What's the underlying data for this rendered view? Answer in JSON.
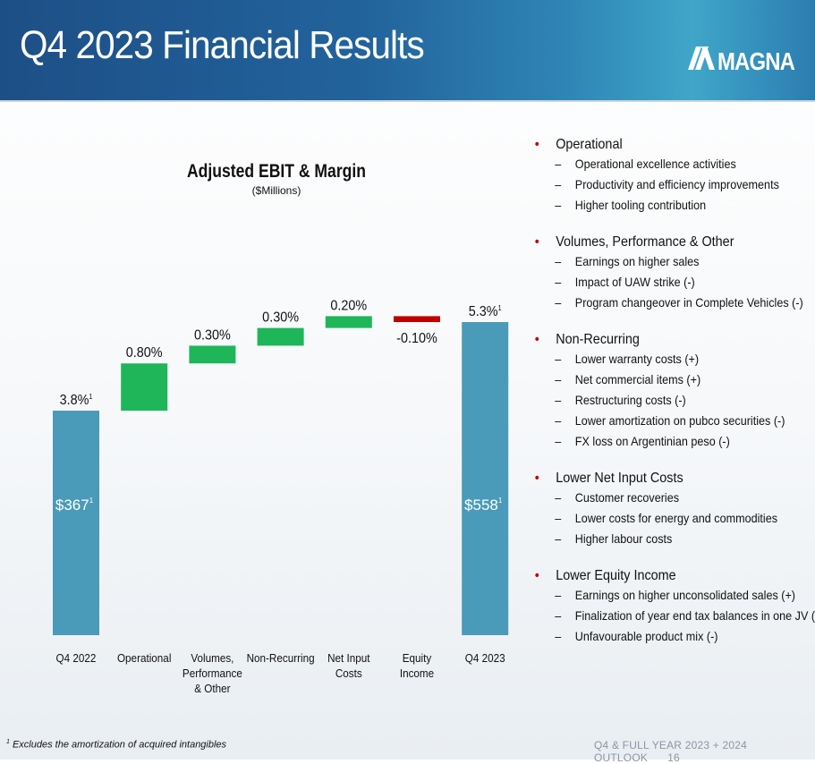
{
  "header": {
    "title": "Q4 2023 Financial Results",
    "logo_text": "MAGNA"
  },
  "colors": {
    "header_dark": "#1d4f86",
    "header_light": "#3fa6c9",
    "endpoint_bar": "#4a9ab9",
    "increase_bar": "#1fb65a",
    "decrease_bar": "#c00000",
    "bullet": "#c00000"
  },
  "chart_data": {
    "type": "bar",
    "subtype": "waterfall",
    "title": "Adjusted EBIT & Margin",
    "subtitle": "($Millions)",
    "categories": [
      "Q4 2022",
      "Operational",
      "Volumes,\nPerformance\n& Other",
      "Non-Recurring",
      "Net Input\nCosts",
      "Equity\nIncome",
      "Q4 2023"
    ],
    "steps": [
      {
        "kind": "total",
        "margin": 3.8,
        "label": "3.8%",
        "footnote": "1",
        "value_label": "$367",
        "value_footnote": "1"
      },
      {
        "kind": "delta",
        "change": 0.8,
        "label": "0.80%"
      },
      {
        "kind": "delta",
        "change": 0.3,
        "label": "0.30%"
      },
      {
        "kind": "delta",
        "change": 0.3,
        "label": "0.30%"
      },
      {
        "kind": "delta",
        "change": 0.2,
        "label": "0.20%"
      },
      {
        "kind": "delta",
        "change": -0.1,
        "label": "-0.10%"
      },
      {
        "kind": "total",
        "margin": 5.3,
        "label": "5.3%",
        "footnote": "1",
        "value_label": "$558",
        "value_footnote": "1"
      }
    ],
    "ylim": [
      0,
      5.6
    ],
    "grid": false,
    "legend": "none"
  },
  "notes": [
    {
      "title": "Operational",
      "items": [
        "Operational excellence activities",
        "Productivity and efficiency improvements",
        "Higher tooling contribution"
      ]
    },
    {
      "title": "Volumes, Performance & Other",
      "items": [
        "Earnings on higher sales",
        "Impact of UAW strike (-)",
        "Program changeover in Complete Vehicles (-)"
      ]
    },
    {
      "title": "Non-Recurring",
      "items": [
        "Lower warranty costs (+)",
        "Net commercial items (+)",
        "Restructuring costs (-)",
        "Lower amortization on pubco securities (-)",
        "FX loss on Argentinian peso (-)"
      ]
    },
    {
      "title": "Lower Net Input Costs",
      "items": [
        "Customer recoveries",
        "Lower costs for energy and commodities",
        "Higher labour costs"
      ]
    },
    {
      "title": "Lower Equity Income",
      "items": [
        "Earnings on higher unconsolidated sales (+)",
        "Finalization of year end tax balances in one JV (-)",
        "Unfavourable product mix (-)"
      ]
    }
  ],
  "footer": {
    "footnote_mark": "1",
    "footnote": "Excludes the amortization of acquired intangibles",
    "deck": "Q4 & FULL YEAR 2023 + 2024 OUTLOOK",
    "page": "16"
  }
}
